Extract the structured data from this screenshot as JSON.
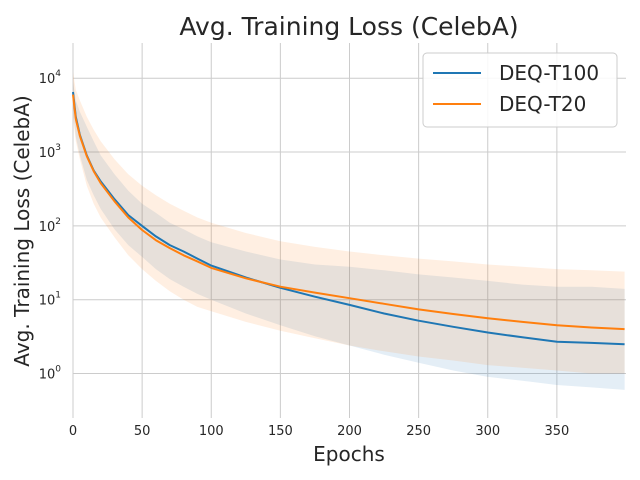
{
  "chart_data": {
    "type": "line",
    "title": "Avg. Training Loss (CelebA)",
    "xlabel": "Epochs",
    "ylabel": "Avg. Training Loss (CelebA)",
    "x_ticks": [
      0,
      50,
      100,
      150,
      200,
      250,
      300,
      350
    ],
    "x_range": [
      0,
      400
    ],
    "y_scale": "log",
    "y_range": [
      0.25,
      30000
    ],
    "y_ticks": [
      {
        "value": 1,
        "base": "10",
        "exp": "0"
      },
      {
        "value": 10,
        "base": "10",
        "exp": "1"
      },
      {
        "value": 100,
        "base": "10",
        "exp": "2"
      },
      {
        "value": 1000,
        "base": "10",
        "exp": "3"
      },
      {
        "value": 10000,
        "base": "10",
        "exp": "4"
      }
    ],
    "grid": true,
    "legend_position": "top-right",
    "series": [
      {
        "name": "DEQ-T100",
        "color": "#1f77b4",
        "x": [
          0,
          2,
          5,
          10,
          15,
          20,
          30,
          40,
          50,
          60,
          70,
          80,
          90,
          100,
          125,
          150,
          175,
          200,
          225,
          250,
          275,
          300,
          325,
          350,
          375,
          399
        ],
        "y": [
          6500,
          3000,
          1700,
          900,
          560,
          400,
          230,
          140,
          100,
          72,
          55,
          45,
          36,
          29,
          20,
          14.5,
          11,
          8.5,
          6.5,
          5.2,
          4.3,
          3.6,
          3.1,
          2.7,
          2.6,
          2.5
        ],
        "band_low": [
          3500,
          1600,
          900,
          420,
          260,
          170,
          90,
          55,
          38,
          26,
          19,
          15,
          12,
          10,
          6.5,
          4.5,
          3.2,
          2.4,
          1.8,
          1.4,
          1.1,
          0.9,
          0.8,
          0.7,
          0.65,
          0.6
        ],
        "band_high": [
          9000,
          5000,
          3500,
          2200,
          1400,
          900,
          500,
          300,
          200,
          150,
          110,
          90,
          72,
          60,
          45,
          35,
          30,
          28,
          25,
          22,
          20,
          18,
          16,
          15,
          15,
          14
        ]
      },
      {
        "name": "DEQ-T20",
        "color": "#ff7f0e",
        "x": [
          0,
          2,
          5,
          10,
          15,
          20,
          30,
          40,
          50,
          60,
          70,
          80,
          90,
          100,
          125,
          150,
          175,
          200,
          225,
          250,
          275,
          300,
          325,
          350,
          375,
          399
        ],
        "y": [
          6000,
          2800,
          1650,
          880,
          550,
          380,
          215,
          130,
          88,
          64,
          50,
          40,
          33,
          27,
          19.5,
          15,
          12.5,
          10.5,
          8.8,
          7.4,
          6.4,
          5.6,
          5,
          4.5,
          4.2,
          4
        ],
        "band_low": [
          3000,
          1400,
          800,
          350,
          200,
          130,
          70,
          40,
          26,
          18,
          13,
          10,
          8,
          7,
          5,
          3.8,
          3,
          2.4,
          2,
          1.7,
          1.5,
          1.3,
          1.2,
          1.1,
          1,
          1
        ],
        "band_high": [
          12000,
          7000,
          5000,
          3000,
          2000,
          1400,
          800,
          500,
          350,
          260,
          200,
          160,
          130,
          110,
          80,
          62,
          52,
          45,
          40,
          36,
          33,
          30,
          28,
          26,
          25,
          24
        ]
      }
    ]
  }
}
